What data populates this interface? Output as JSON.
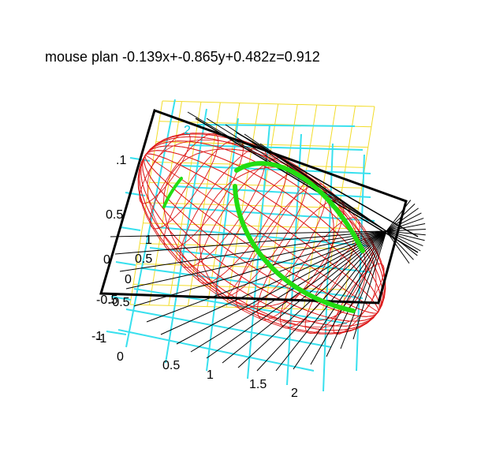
{
  "title": "mouse plan -0.139x+-0.865y+0.482z=0.912",
  "colors": {
    "background": "#ffffff",
    "ellipsoid_mesh": "#dd1a1a",
    "grid_yellow": "#f2dc2a",
    "grid_cyan": "#38e0ee",
    "plane_frame": "#000000",
    "intersection_curve": "#22dd11",
    "rays": "#000000"
  },
  "axis_labels": {
    "left": [
      ".1",
      "0.5",
      "0",
      "-0.5",
      "-1"
    ],
    "inner": [
      "1",
      "0.5",
      "0",
      "-0.5",
      "-1"
    ],
    "bottom": [
      "0",
      "0.5",
      "1",
      "1.5",
      "2"
    ],
    "z_marker": "2"
  }
}
